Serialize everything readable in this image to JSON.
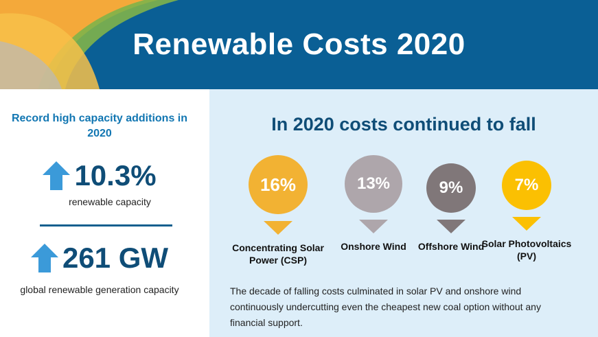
{
  "header": {
    "title": "Renewable Costs 2020"
  },
  "left": {
    "kicker": "Record high capacity additions in 2020",
    "stat1": {
      "value": "10.3%",
      "caption": "renewable capacity",
      "icon": "up-arrow-icon"
    },
    "stat2": {
      "value": "261 GW",
      "caption": "global renewable generation capacity",
      "icon": "up-arrow-icon"
    }
  },
  "right": {
    "title": "In 2020 costs continued to fall",
    "pins": [
      {
        "value": "16%",
        "label": "Concentrating Solar Power (CSP)",
        "color": "#f2b233"
      },
      {
        "value": "13%",
        "label": "Onshore Wind",
        "color": "#aea6ab"
      },
      {
        "value": "9%",
        "label": "Offshore Wind",
        "color": "#807779"
      },
      {
        "value": "7%",
        "label": "Solar Photovoltaics (PV)",
        "color": "#fbc002"
      }
    ],
    "body": "The decade of falling costs culminated in solar PV and onshore wind continuously undercutting even the cheapest new coal option without any financial support."
  },
  "colors": {
    "header_bg": "#0a5f95",
    "accent_blue": "#1176b2",
    "dark_blue": "#0f4d77",
    "panel_bg": "#ddeef9",
    "arrow": "#3b9ad9"
  }
}
